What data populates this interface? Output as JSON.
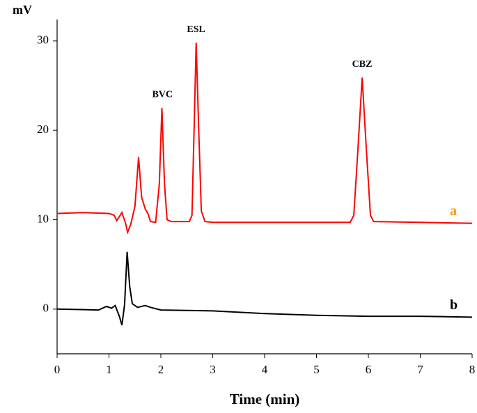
{
  "chart_data": {
    "type": "line",
    "x_label": "Time (min)",
    "y_label": "mV",
    "xlim": [
      0,
      8
    ],
    "xticks": [
      0,
      1,
      2,
      3,
      4,
      5,
      6,
      7,
      8
    ],
    "ylim": [
      -5,
      32.4
    ],
    "yticks": [
      0,
      10,
      20,
      30
    ],
    "series": [
      {
        "name": "a",
        "color": "#ff0000",
        "name_color": "#f39c12",
        "x": [
          0,
          0.5,
          1.0,
          1.1,
          1.15,
          1.25,
          1.32,
          1.36,
          1.42,
          1.5,
          1.57,
          1.63,
          1.7,
          1.75,
          1.8,
          1.9,
          1.97,
          2.02,
          2.07,
          2.12,
          2.2,
          2.55,
          2.6,
          2.64,
          2.68,
          2.73,
          2.78,
          2.85,
          3,
          4,
          5,
          5.65,
          5.72,
          5.8,
          5.88,
          5.96,
          6.04,
          6.1,
          7,
          8
        ],
        "values": [
          10.7,
          10.8,
          10.7,
          10.5,
          9.9,
          10.8,
          9.6,
          8.6,
          9.5,
          11.5,
          17.0,
          12.5,
          11.2,
          10.7,
          9.8,
          9.7,
          14,
          22.5,
          14,
          10,
          9.8,
          9.8,
          10.5,
          20,
          29.8,
          20,
          11,
          9.8,
          9.7,
          9.7,
          9.7,
          9.7,
          10.5,
          18,
          25.9,
          18,
          10.5,
          9.8,
          9.7,
          9.6
        ]
      },
      {
        "name": "b",
        "color": "#000000",
        "name_color": "#000000",
        "x": [
          0,
          0.8,
          0.95,
          1.05,
          1.12,
          1.2,
          1.25,
          1.3,
          1.35,
          1.4,
          1.45,
          1.55,
          1.7,
          1.8,
          2,
          3,
          4,
          5,
          6,
          7,
          8
        ],
        "values": [
          0.0,
          -0.1,
          0.3,
          0.1,
          0.4,
          -0.8,
          -1.8,
          0.5,
          6.4,
          2.5,
          0.6,
          0.2,
          0.4,
          0.2,
          -0.1,
          -0.2,
          -0.5,
          -0.7,
          -0.8,
          -0.8,
          -0.9
        ]
      }
    ],
    "annotations": [
      {
        "text": "BVC",
        "x": 2.03,
        "y": 23.5
      },
      {
        "text": "ESL",
        "x": 2.68,
        "y": 30.8
      },
      {
        "text": "CBZ",
        "x": 5.88,
        "y": 26.9
      }
    ]
  }
}
